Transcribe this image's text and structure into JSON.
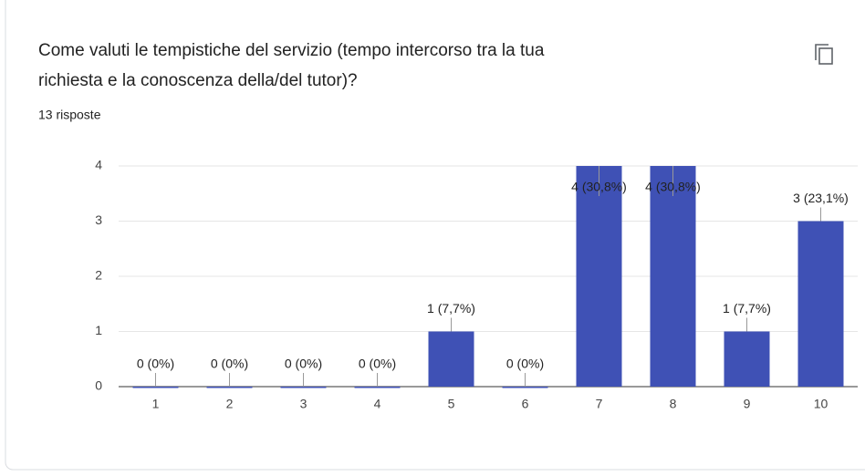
{
  "chart_data": {
    "type": "bar",
    "title": [
      "Come valuti le tempistiche del servizio (tempo intercorso tra la tua",
      "richiesta e la conoscenza della/del tutor)?"
    ],
    "subtitle": "13 risposte",
    "categories": [
      "1",
      "2",
      "3",
      "4",
      "5",
      "6",
      "7",
      "8",
      "9",
      "10"
    ],
    "values": [
      0,
      0,
      0,
      0,
      1,
      0,
      4,
      4,
      1,
      3
    ],
    "value_labels": [
      "0 (0%)",
      "0 (0%)",
      "0 (0%)",
      "0 (0%)",
      "1 (7,7%)",
      "0 (0%)",
      "4 (30,8%)",
      "4 (30,8%)",
      "1 (7,7%)",
      "3 (23,1%)"
    ],
    "color": "#3f51b5",
    "ylim": [
      0,
      4
    ],
    "yticks": [
      0,
      1,
      2,
      3,
      4
    ],
    "grid": true
  }
}
